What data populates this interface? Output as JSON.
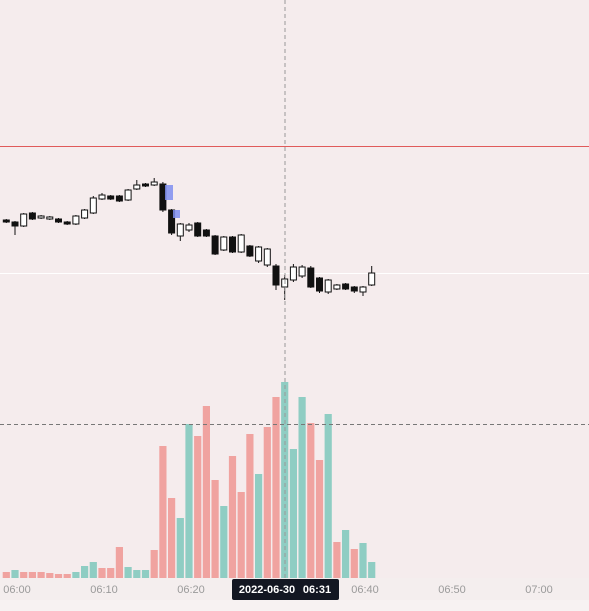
{
  "chart_data": [
    {
      "type": "candlestick",
      "categories": [
        null,
        "06:00",
        null,
        null,
        null,
        null,
        null,
        null,
        null,
        null,
        null,
        "06:10",
        null,
        null,
        null,
        null,
        null,
        null,
        null,
        null,
        null,
        "06:20",
        null,
        null,
        null,
        null,
        null,
        null,
        null,
        null,
        null,
        null,
        null,
        null,
        null,
        null,
        null,
        null,
        null,
        null,
        null,
        "06:40",
        null,
        null,
        null,
        null,
        null,
        null,
        null,
        null,
        null,
        "06:50",
        null,
        null,
        null,
        null,
        null,
        null,
        null,
        null,
        null,
        "07:00"
      ],
      "open": [
        180,
        178,
        174,
        187,
        182,
        181,
        181,
        178,
        176,
        182,
        187,
        201,
        204,
        204,
        200,
        211,
        216,
        215,
        216,
        190,
        164,
        170,
        177,
        170,
        164,
        150,
        163,
        148,
        154,
        139,
        135,
        134,
        113,
        120,
        124,
        132,
        122,
        108,
        111,
        116,
        113,
        108,
        115,
        null,
        null,
        null,
        null,
        null,
        null,
        null,
        null,
        null,
        null,
        null,
        null,
        null,
        null,
        null,
        null,
        null,
        null,
        null
      ],
      "high": [
        181,
        179,
        187,
        188,
        185,
        184,
        182,
        179,
        185,
        191,
        204,
        207,
        205,
        205,
        211,
        220,
        217,
        222,
        218,
        191,
        177,
        177,
        178,
        171,
        165,
        164,
        164,
        166,
        155,
        154,
        152,
        136,
        125,
        136,
        135,
        134,
        123,
        121,
        116,
        117,
        114,
        114,
        134,
        null,
        null,
        null,
        null,
        null,
        null,
        null,
        null,
        null,
        null,
        null,
        null,
        null,
        null,
        null,
        null,
        null,
        null,
        null
      ],
      "low": [
        177,
        165,
        173,
        180,
        181,
        180,
        177,
        175,
        175,
        181,
        186,
        200,
        200,
        198,
        199,
        210,
        213,
        214,
        188,
        165,
        159,
        168,
        163,
        163,
        145,
        149,
        147,
        147,
        143,
        137,
        133,
        110,
        100,
        118,
        122,
        112,
        107,
        106,
        110,
        110,
        107,
        104,
        114,
        null,
        null,
        null,
        null,
        null,
        null,
        null,
        null,
        null,
        null,
        null,
        null,
        null,
        null,
        null,
        null,
        null,
        null,
        null
      ],
      "close": [
        178,
        174,
        186,
        181,
        184,
        183,
        178,
        176,
        184,
        190,
        202,
        205,
        201,
        199,
        210,
        215,
        214,
        218,
        190,
        167,
        176,
        175,
        164,
        164,
        146,
        163,
        148,
        165,
        144,
        153,
        151,
        115,
        121,
        133,
        133,
        113,
        109,
        120,
        115,
        111,
        109,
        113,
        127,
        null,
        null,
        null,
        null,
        null,
        null,
        null,
        null,
        null,
        null,
        null,
        null,
        null,
        null,
        null,
        null,
        null,
        null,
        null
      ],
      "up_color": "#ffffff",
      "down_color": "#111111",
      "ylim": [
        0,
        400
      ],
      "crosshair": {
        "date": "2022-06-30",
        "time": "06:31"
      }
    },
    {
      "type": "bar",
      "values": [
        6,
        8,
        6,
        6,
        6,
        5,
        4,
        4,
        6,
        12,
        16,
        10,
        10,
        31,
        11,
        8,
        8,
        28,
        132,
        80,
        60,
        154,
        142,
        172,
        98,
        72,
        122,
        86,
        144,
        104,
        151,
        181,
        196,
        129,
        181,
        155,
        118,
        164,
        36,
        48,
        29,
        35,
        16,
        null,
        null,
        null,
        null,
        null,
        null,
        null,
        null,
        null,
        null,
        null,
        null,
        null,
        null,
        null,
        null,
        null,
        null,
        null
      ],
      "colors": [
        "#f0a3a0",
        "#8fcdc3",
        "#f0a3a0",
        "#f0a3a0",
        "#f0a3a0",
        "#f0a3a0",
        "#f0a3a0",
        "#f0a3a0",
        "#8fcdc3",
        "#8fcdc3",
        "#8fcdc3",
        "#f0a3a0",
        "#f0a3a0",
        "#f0a3a0",
        "#8fcdc3",
        "#8fcdc3",
        "#8fcdc3",
        "#f0a3a0",
        "#f0a3a0",
        "#f0a3a0",
        "#8fcdc3",
        "#8fcdc3",
        "#f0a3a0",
        "#f0a3a0",
        "#f0a3a0",
        "#8fcdc3",
        "#f0a3a0",
        "#f0a3a0",
        "#f0a3a0",
        "#8fcdc3",
        "#f0a3a0",
        "#f0a3a0",
        "#8fcdc3",
        "#8fcdc3",
        "#8fcdc3",
        "#f0a3a0",
        "#f0a3a0",
        "#8fcdc3",
        "#f0a3a0",
        "#8fcdc3",
        "#f0a3a0",
        "#8fcdc3",
        "#8fcdc3",
        null,
        null,
        null,
        null,
        null,
        null,
        null,
        null,
        null,
        null,
        null,
        null,
        null,
        null,
        null,
        null,
        null,
        null,
        null
      ],
      "ylim": [
        0,
        200
      ]
    }
  ]
}
